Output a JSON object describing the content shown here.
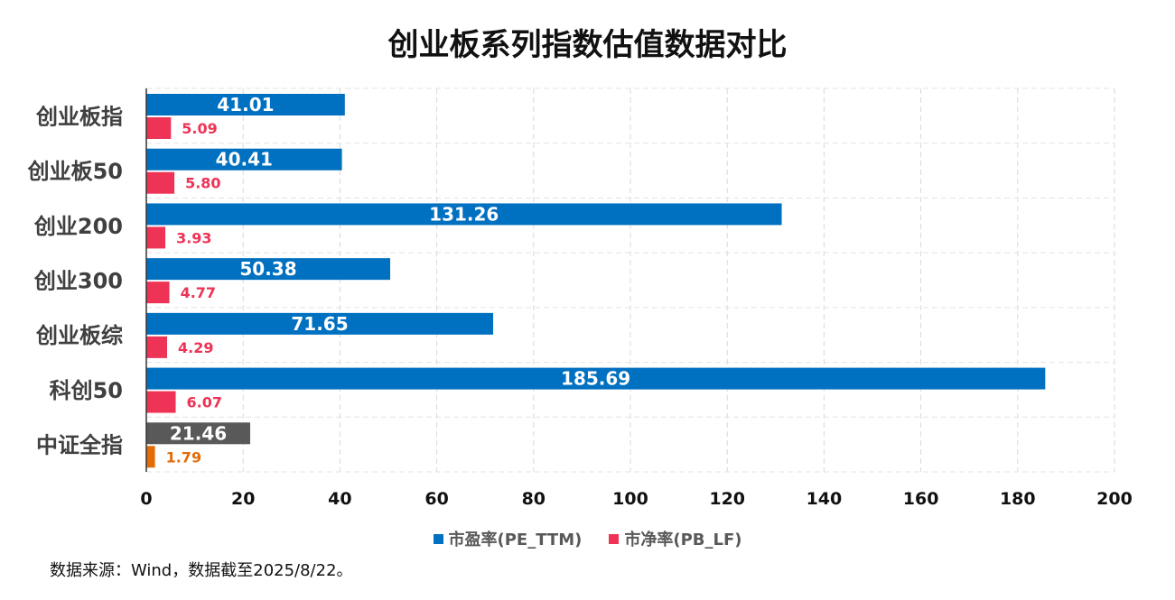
{
  "chart_data": {
    "type": "bar",
    "orientation": "horizontal",
    "title": "创业板系列指数估值数据对比",
    "categories": [
      "创业板指",
      "创业板50",
      "创业200",
      "创业300",
      "创业板综",
      "科创50",
      "中证全指"
    ],
    "series": [
      {
        "name": "市盈率(PE_TTM)",
        "values": [
          41.01,
          40.41,
          131.26,
          50.38,
          71.65,
          185.69,
          21.46
        ],
        "labels": [
          "41.01",
          "40.41",
          "131.26",
          "50.38",
          "71.65",
          "185.69",
          "21.46"
        ],
        "color": "#0070c0",
        "highlight_color": "#595959",
        "label_color": "#ffffff"
      },
      {
        "name": "市净率(PB_LF)",
        "values": [
          5.09,
          5.8,
          3.93,
          4.77,
          4.29,
          6.07,
          1.79
        ],
        "labels": [
          "5.09",
          "5.80",
          "3.93",
          "4.77",
          "4.29",
          "6.07",
          "1.79"
        ],
        "color": "#ee3356",
        "highlight_color": "#e36c09"
      }
    ],
    "highlight_category": "中证全指",
    "xlim": [
      0,
      200
    ],
    "xticks": [
      "0",
      "20",
      "40",
      "60",
      "80",
      "100",
      "120",
      "140",
      "160",
      "180",
      "200"
    ],
    "grid": true,
    "legend_position": "bottom"
  },
  "footnote": "数据来源：Wind，数据截至2025/8/22。"
}
